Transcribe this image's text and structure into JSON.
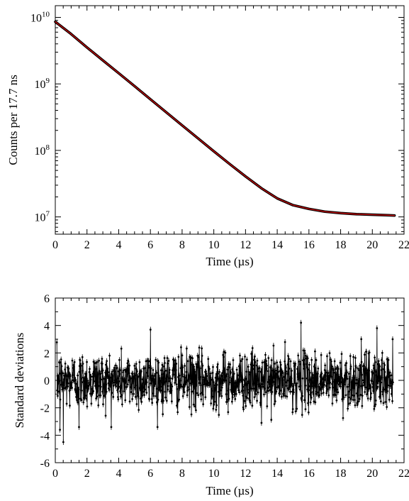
{
  "chart_data": [
    {
      "type": "line",
      "xlabel": "Time (µs)",
      "ylabel": "Counts per 17.7 ns",
      "xlim": [
        0,
        22
      ],
      "ylim": [
        5500000,
        15000000000
      ],
      "yscale": "log",
      "grid": false,
      "x_ticks": [
        0,
        2,
        4,
        6,
        8,
        10,
        12,
        14,
        16,
        18,
        20,
        22
      ],
      "y_ticks": [
        {
          "value": 10000000,
          "base": "10",
          "exp": "7"
        },
        {
          "value": 100000000,
          "base": "10",
          "exp": "8"
        },
        {
          "value": 1000000000,
          "base": "10",
          "exp": "9"
        },
        {
          "value": 10000000000,
          "base": "10",
          "exp": "10"
        }
      ],
      "series": [
        {
          "color": "#000000",
          "style": "data",
          "x": [
            0,
            1,
            2,
            3,
            4,
            5,
            6,
            7,
            8,
            9,
            10,
            11,
            12,
            13,
            14,
            15,
            16,
            17,
            18,
            19,
            20,
            21,
            21.4
          ],
          "y": [
            8600000000,
            5620000000,
            3530000000,
            2260000000,
            1450000000,
            925000000,
            587000000,
            374000000,
            238000000,
            152000000,
            97000000,
            62400000,
            40700000,
            27000000,
            19000000,
            15000000,
            13200000,
            12000000,
            11400000,
            11000000,
            10800000,
            10600000,
            10500000
          ]
        },
        {
          "color": "#cc0000",
          "style": "fit",
          "x": [
            0,
            1,
            2,
            3,
            4,
            5,
            6,
            7,
            8,
            9,
            10,
            11,
            12,
            13,
            14,
            15,
            16,
            17,
            18,
            19,
            20,
            21,
            21.4
          ],
          "y": [
            8600000000,
            5620000000,
            3530000000,
            2260000000,
            1450000000,
            925000000,
            587000000,
            374000000,
            238000000,
            152000000,
            97000000,
            62400000,
            40700000,
            27000000,
            19000000,
            15000000,
            13200000,
            12000000,
            11400000,
            11000000,
            10800000,
            10600000,
            10500000
          ]
        }
      ]
    },
    {
      "type": "scatter",
      "xlabel": "Time (µs)",
      "ylabel": "Standard deviations",
      "xlim": [
        0,
        22
      ],
      "ylim": [
        -6,
        6
      ],
      "grid": false,
      "x_ticks": [
        0,
        2,
        4,
        6,
        8,
        10,
        12,
        14,
        16,
        18,
        20,
        22
      ],
      "y_ticks": [
        -6,
        -4,
        -2,
        0,
        2,
        4,
        6
      ],
      "series": [
        {
          "color": "#000000",
          "x_range": [
            0.1,
            21.3
          ],
          "n_points": 1200,
          "sigma": 1,
          "noise_seed": 12345,
          "highlights": [
            {
              "x": 0.5,
              "y": -4.5
            },
            {
              "x": 0.3,
              "y": -3.6
            },
            {
              "x": 15.5,
              "y": 4.2
            },
            {
              "x": 20.3,
              "y": 3.8
            },
            {
              "x": 6.0,
              "y": 3.7
            },
            {
              "x": 13.0,
              "y": -3.1
            },
            {
              "x": 1.5,
              "y": -3.4
            }
          ]
        }
      ]
    }
  ]
}
